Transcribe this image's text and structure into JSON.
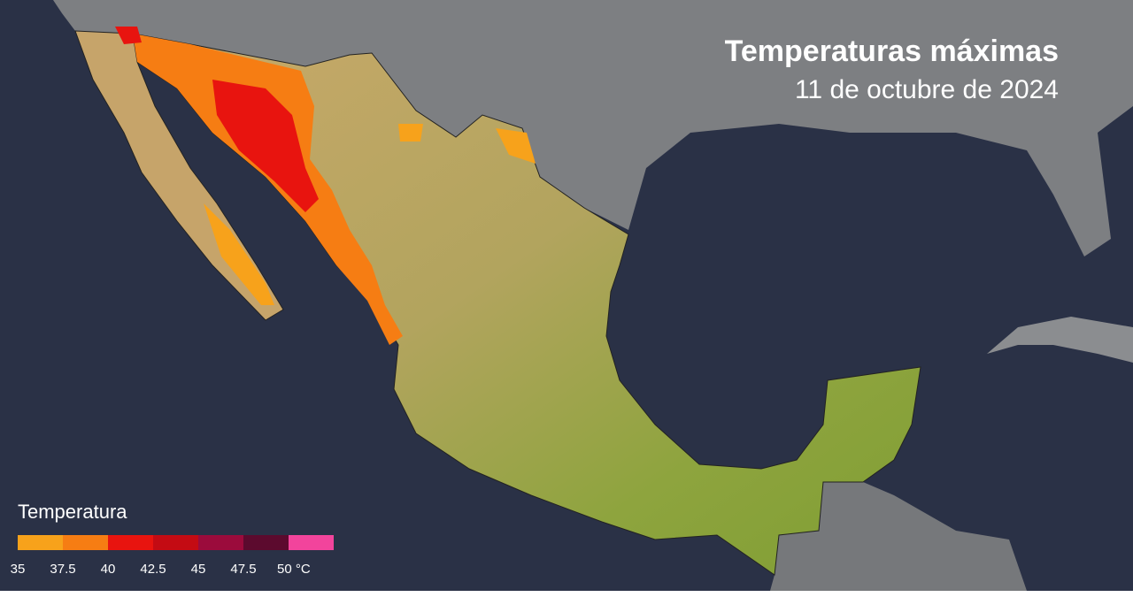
{
  "header": {
    "title": "Temperaturas máximas",
    "subtitle": "11 de octubre de 2024"
  },
  "legend": {
    "title": "Temperatura",
    "labels": [
      "35",
      "37.5",
      "40",
      "42.5",
      "45",
      "47.5",
      "50 °C"
    ],
    "colors": [
      "#f7a21b",
      "#f67d13",
      "#e8140f",
      "#c40b13",
      "#9b0b3c",
      "#5c0a2e",
      "#f2449c"
    ]
  }
}
